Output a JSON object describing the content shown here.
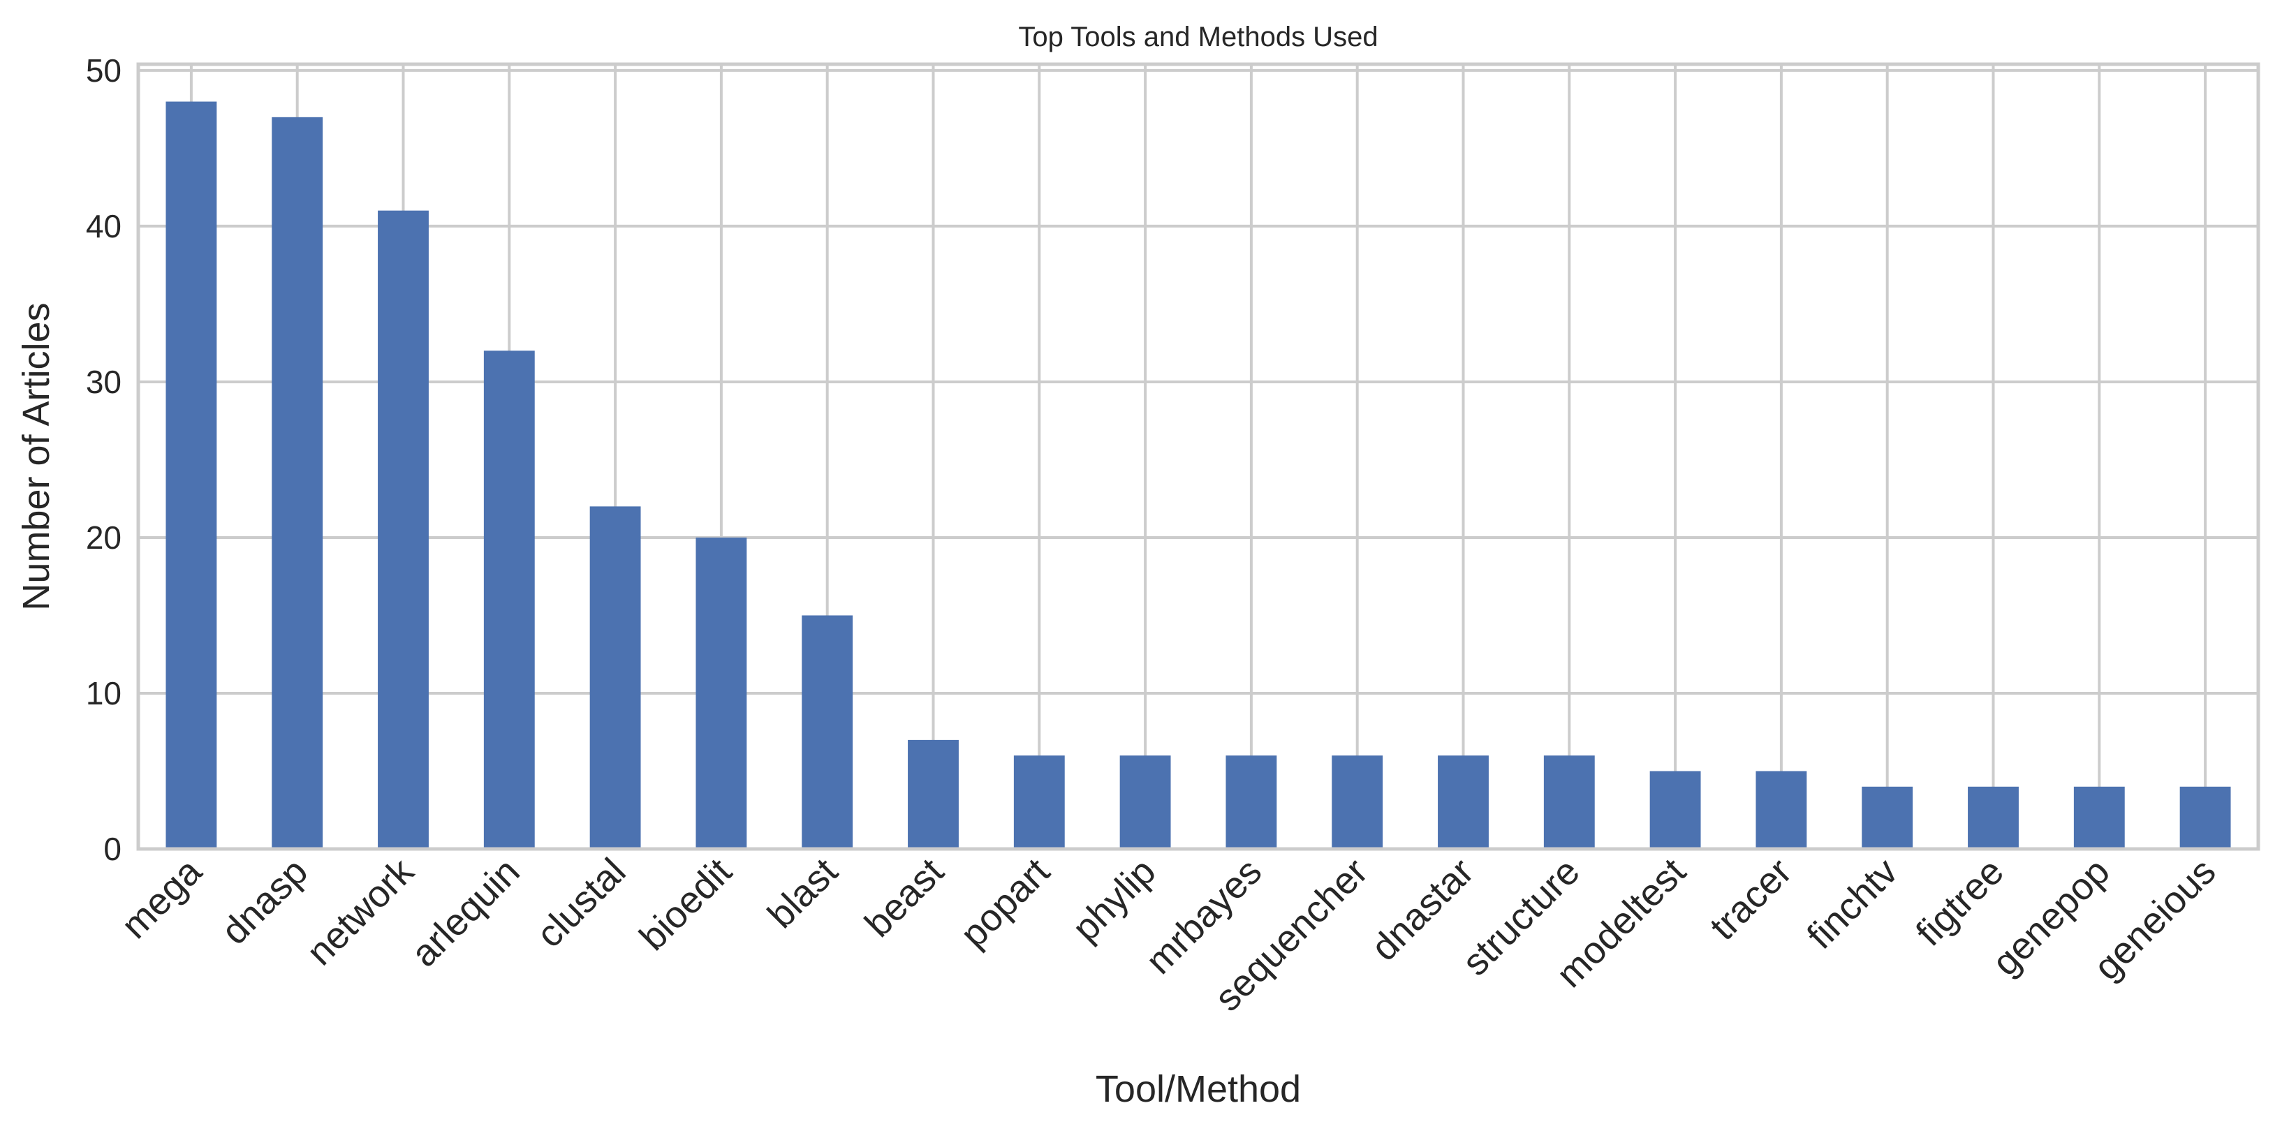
{
  "chart_data": {
    "type": "bar",
    "title": "Top Tools and Methods Used",
    "xlabel": "Tool/Method",
    "ylabel": "Number of Articles",
    "categories": [
      "mega",
      "dnasp",
      "network",
      "arlequin",
      "clustal",
      "bioedit",
      "blast",
      "beast",
      "popart",
      "phylip",
      "mrbayes",
      "sequencher",
      "dnastar",
      "structure",
      "modeltest",
      "tracer",
      "finchtv",
      "figtree",
      "genepop",
      "geneious"
    ],
    "values": [
      48,
      47,
      41,
      32,
      22,
      20,
      15,
      7,
      6,
      6,
      6,
      6,
      6,
      6,
      5,
      5,
      4,
      4,
      4,
      4
    ],
    "ylim": [
      0,
      50.4
    ],
    "yticks": [
      0,
      10,
      20,
      30,
      40,
      50
    ],
    "grid": true,
    "legend": "none",
    "colors": {
      "bar": "#4c72b0",
      "grid": "#cccccc",
      "frame": "#cccccc",
      "text": "#262626"
    }
  }
}
